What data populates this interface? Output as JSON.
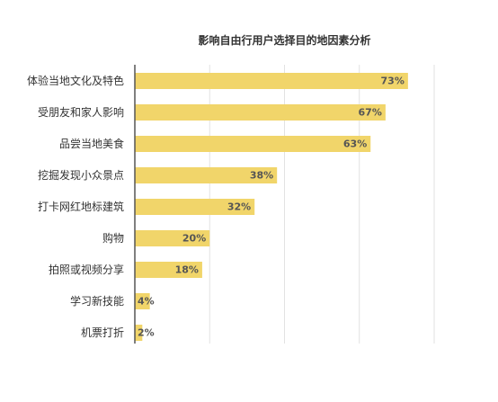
{
  "chart_data": {
    "type": "bar",
    "orientation": "horizontal",
    "title": "影响自由行用户选择目的地因素分析",
    "categories": [
      "体验当地文化及特色",
      "受朋友和家人影响",
      "品尝当地美食",
      "挖掘发现小众景点",
      "打卡网红地标建筑",
      "购物",
      "拍照或视频分享",
      "学习新技能",
      "机票打折"
    ],
    "values": [
      73,
      67,
      63,
      38,
      32,
      20,
      18,
      4,
      2
    ],
    "value_labels": [
      "73%",
      "67%",
      "63%",
      "38%",
      "32%",
      "20%",
      "18%",
      "4%",
      "2%"
    ],
    "xlim": [
      0,
      80
    ],
    "grid": true,
    "bar_color": "#f1d56a",
    "grid_color": "#e2e2e2",
    "axis_color": "#555555",
    "label_color": "#333333",
    "value_label_color": "#555555"
  }
}
